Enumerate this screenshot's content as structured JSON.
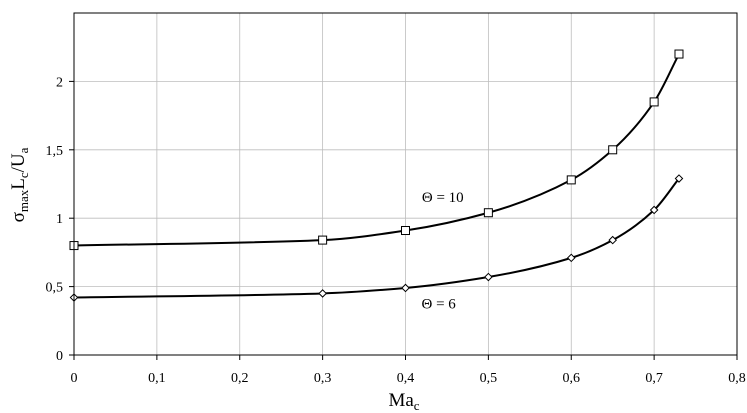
{
  "chart_data": {
    "type": "line",
    "xlabel": {
      "main": "Ma",
      "sub": "c"
    },
    "ylabel": {
      "p1": "σ",
      "s1": "max",
      "p2": "L",
      "s2": "c",
      "p3": "/U",
      "s3": "a"
    },
    "xlim": [
      0,
      0.8
    ],
    "ylim": [
      0,
      2.5
    ],
    "xticks": [
      0,
      0.1,
      0.2,
      0.3,
      0.4,
      0.5,
      0.6,
      0.7,
      0.8
    ],
    "xtick_labels": [
      "0",
      "0,1",
      "0,2",
      "0,3",
      "0,4",
      "0,5",
      "0,6",
      "0,7",
      "0,8"
    ],
    "yticks": [
      0,
      0.5,
      1,
      1.5,
      2
    ],
    "ytick_labels": [
      "0",
      "0,5",
      "1",
      "1,5",
      "2"
    ],
    "grid": true,
    "series": [
      {
        "marker": "square",
        "x": [
          0,
          0.3,
          0.4,
          0.5,
          0.6,
          0.65,
          0.7,
          0.73
        ],
        "y": [
          0.8,
          0.84,
          0.91,
          1.04,
          1.28,
          1.5,
          1.85,
          2.2
        ]
      },
      {
        "marker": "diamond",
        "x": [
          0,
          0.3,
          0.4,
          0.5,
          0.6,
          0.65,
          0.7,
          0.73
        ],
        "y": [
          0.42,
          0.45,
          0.49,
          0.57,
          0.71,
          0.84,
          1.06,
          1.29
        ]
      }
    ],
    "annotations": [
      {
        "text": "Θ = 10",
        "x": 0.445,
        "y": 1.12
      },
      {
        "text": "Θ = 6",
        "x": 0.44,
        "y": 0.34
      }
    ]
  }
}
